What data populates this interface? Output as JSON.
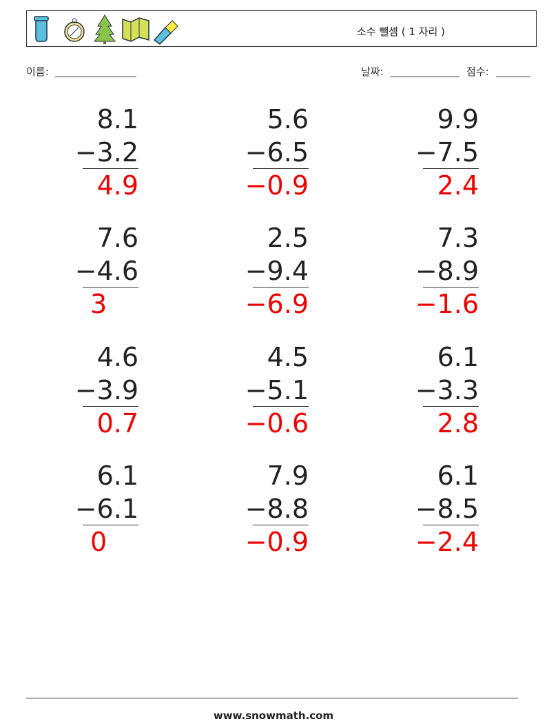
{
  "header": {
    "title": "소수 뺄셈 ( 1 자리 )"
  },
  "fields": {
    "name": "이름:",
    "date": "날짜:",
    "score": "점수:"
  },
  "problems": [
    {
      "a": "8.1",
      "b": "−3.2",
      "answer": "4.9"
    },
    {
      "a": "5.6",
      "b": "−6.5",
      "answer": "−0.9"
    },
    {
      "a": "9.9",
      "b": "−7.5",
      "answer": "2.4"
    },
    {
      "a": "7.6",
      "b": "−4.6",
      "answer": "3"
    },
    {
      "a": "2.5",
      "b": "−9.4",
      "answer": "−6.9"
    },
    {
      "a": "7.3",
      "b": "−8.9",
      "answer": "−1.6"
    },
    {
      "a": "4.6",
      "b": "−3.9",
      "answer": "0.7"
    },
    {
      "a": "4.5",
      "b": "−5.1",
      "answer": "−0.6"
    },
    {
      "a": "6.1",
      "b": "−3.3",
      "answer": "2.8"
    },
    {
      "a": "6.1",
      "b": "−6.1",
      "answer": "0"
    },
    {
      "a": "7.9",
      "b": "−8.8",
      "answer": "−0.9"
    },
    {
      "a": "6.1",
      "b": "−8.5",
      "answer": "−2.4"
    }
  ],
  "footer": {
    "site": "www.snowmath.com"
  }
}
